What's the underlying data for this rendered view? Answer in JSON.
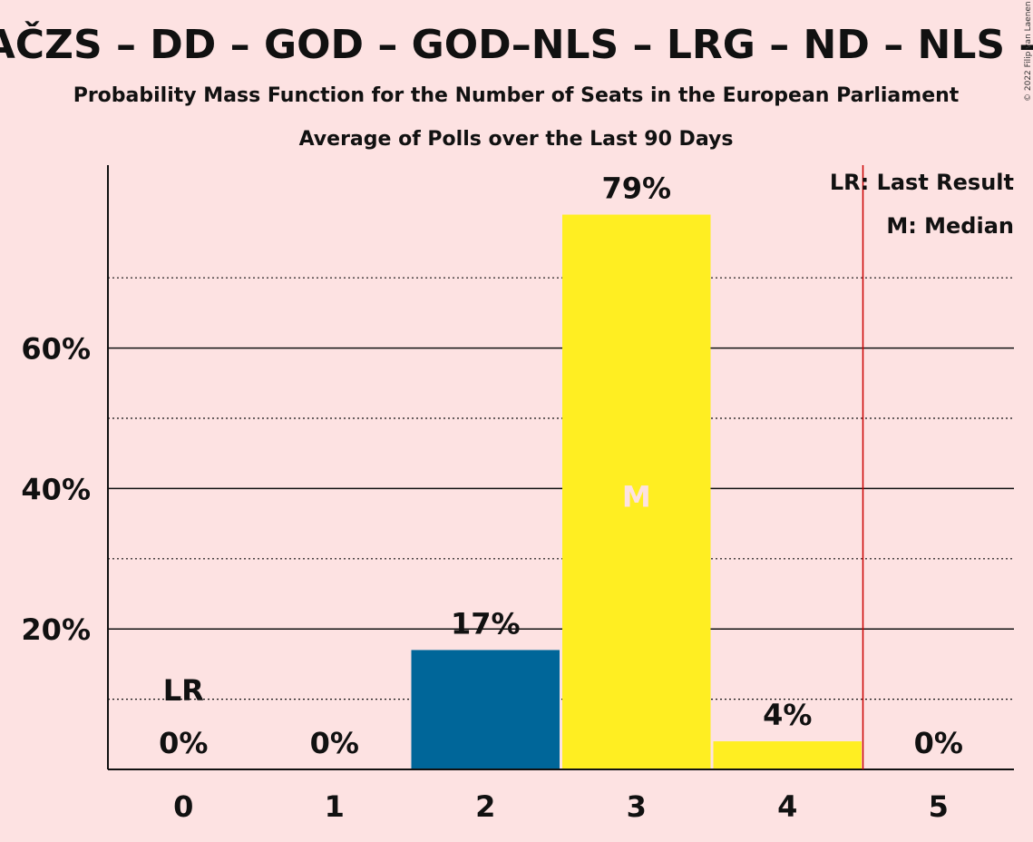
{
  "chart_data": {
    "type": "bar",
    "title": "– AČZS – DD – GOD – GOD–NLS – LRG – ND – NLS – Z",
    "subtitle": "Probability Mass Function for the Number of Seats in the European Parliament",
    "subtitle2": "Average of Polls over the Last 90 Days",
    "copyright": "© 2022 Filip van Laenen",
    "categories": [
      "0",
      "1",
      "2",
      "3",
      "4",
      "5"
    ],
    "values": [
      0,
      0,
      17,
      79,
      4,
      0
    ],
    "value_labels": [
      "0%",
      "0%",
      "17%",
      "79%",
      "4%",
      "0%"
    ],
    "bar_colors": [
      "#006699",
      "#006699",
      "#006699",
      "#ffee22",
      "#ffee22",
      "#ffee22"
    ],
    "y_ticks": [
      {
        "value": 20,
        "label": "20%"
      },
      {
        "value": 40,
        "label": "40%"
      },
      {
        "value": 60,
        "label": "60%"
      }
    ],
    "y_minor_ticks": [
      10,
      30,
      50,
      70
    ],
    "ylim": [
      0,
      86
    ],
    "last_result": {
      "seat": 0,
      "label": "LR",
      "line_at": 4.5,
      "color": "#cc0000"
    },
    "median": {
      "seat": 3,
      "label": "M"
    },
    "legend": [
      "LR: Last Result",
      "M: Median"
    ],
    "legend_position": "top-right",
    "grid": true
  }
}
